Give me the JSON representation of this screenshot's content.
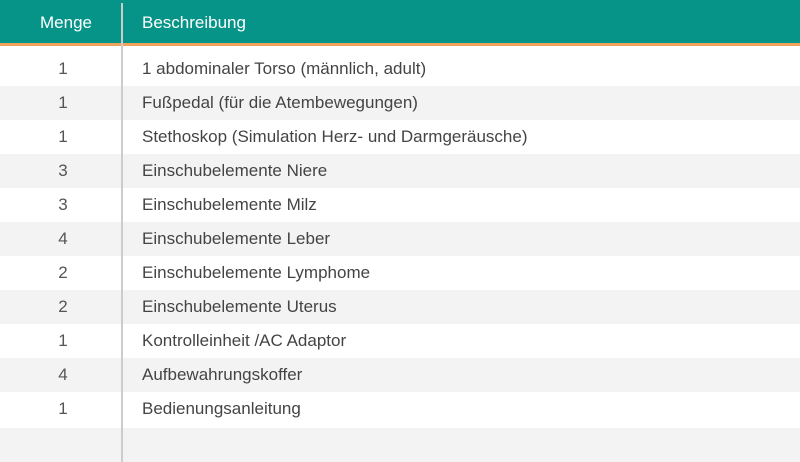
{
  "header": {
    "qty_label": "Menge",
    "desc_label": "Beschreibung"
  },
  "rows": [
    {
      "qty": "1",
      "desc": "1 abdominaler Torso (männlich, adult)"
    },
    {
      "qty": "1",
      "desc": "Fußpedal (für die Atembewegungen)"
    },
    {
      "qty": "1",
      "desc": "Stethoskop (Simulation Herz- und Darmgeräusche)"
    },
    {
      "qty": "3",
      "desc": "Einschubelemente Niere"
    },
    {
      "qty": "3",
      "desc": "Einschubelemente Milz"
    },
    {
      "qty": "4",
      "desc": "Einschubelemente Leber"
    },
    {
      "qty": "2",
      "desc": "Einschubelemente Lymphome"
    },
    {
      "qty": "2",
      "desc": "Einschubelemente Uterus"
    },
    {
      "qty": "1",
      "desc": "Kontrolleinheit /AC Adaptor"
    },
    {
      "qty": "4",
      "desc": "Aufbewahrungskoffer"
    },
    {
      "qty": "1",
      "desc": "Bedienungsanleitung"
    }
  ],
  "colors": {
    "header_bg": "#069488",
    "header_accent": "#f0a35c",
    "row_alt_bg": "#f3f3f3"
  }
}
